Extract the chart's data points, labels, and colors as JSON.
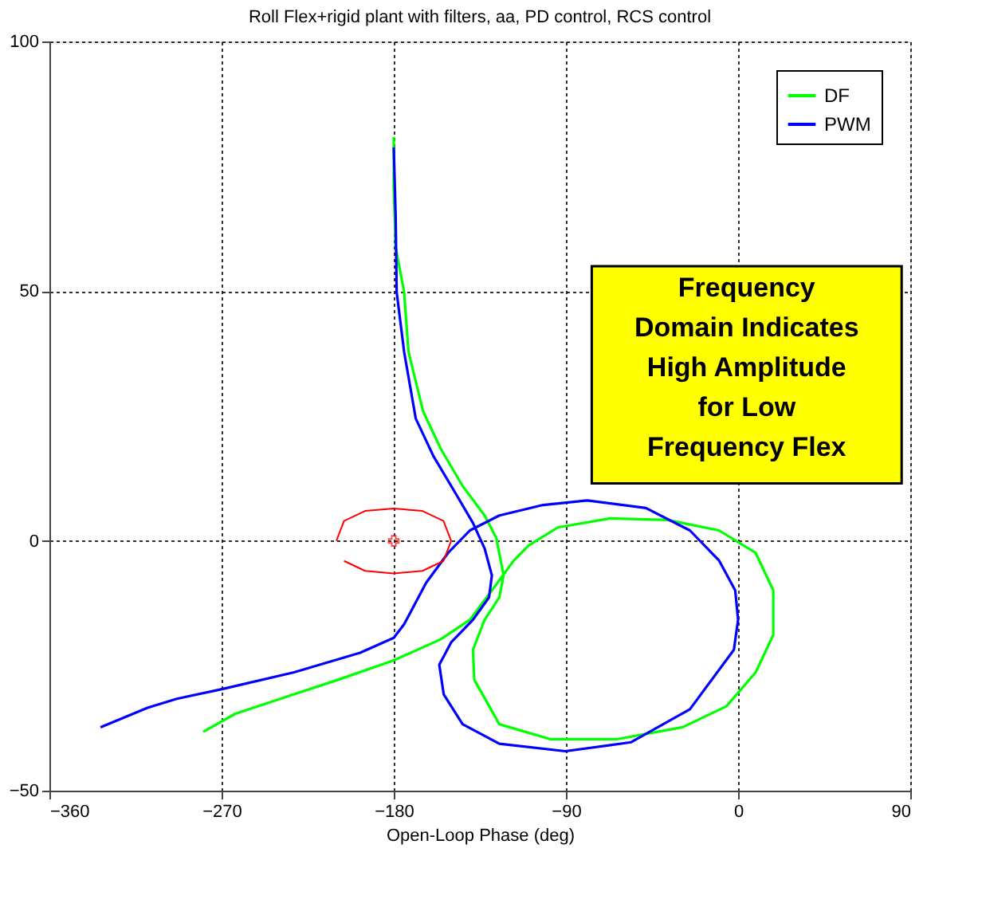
{
  "chart_data": {
    "type": "line",
    "title": "Roll Flex+rigid plant with filters, aa, PD control, RCS control",
    "xlabel": "Open-Loop Phase (deg)",
    "xlim": [
      -360,
      90
    ],
    "xticks": [
      -360,
      -270,
      -180,
      -90,
      0,
      90
    ],
    "ylim": [
      -50,
      100
    ],
    "yticks": [
      -50,
      0,
      50,
      100
    ],
    "grid": true,
    "legend": "top right",
    "marker": "none",
    "annotations": [
      "Frequency\nDomain Indicates\nHigh Amplitude\nfor Low\nFrequency Flex"
    ],
    "series": [
      {
        "name": "DF",
        "color": "#00ff00",
        "x": [
          -180,
          -180,
          -179,
          -174.6,
          -172.3,
          -164.7,
          -155.5,
          -144,
          -132.5,
          -126.4,
          -122.6,
          -124.8,
          -132.5,
          -138.6,
          -137.9,
          -124.8,
          -98,
          -63.5,
          -29,
          -6.1,
          9.2,
          18.4,
          18.4,
          9.2,
          -10,
          -36.8,
          -67.4,
          -94.2,
          -109.5,
          -117.2,
          -128.7,
          -140.2,
          -155.5,
          -180,
          -209.1,
          -232.1,
          -262.8,
          -279.6
        ],
        "values": [
          80.9,
          70.7,
          58.8,
          49.9,
          37.9,
          26,
          18.5,
          11,
          5.1,
          0.6,
          -6.9,
          -11.3,
          -15.8,
          -21.8,
          -27.8,
          -36.7,
          -39.7,
          -39.7,
          -37.3,
          -33.1,
          -26.3,
          -18.8,
          -9.9,
          -2.4,
          2.1,
          4.2,
          4.5,
          2.7,
          -0.9,
          -3.9,
          -9.9,
          -15.8,
          -19.7,
          -23.9,
          -27.8,
          -30.7,
          -34.6,
          -38.2
        ]
      },
      {
        "name": "PWM",
        "color": "#0000ff",
        "x": [
          -180,
          -179,
          -178.5,
          -174.6,
          -168.5,
          -159.3,
          -147.8,
          -138.6,
          -132.5,
          -128.7,
          -130.2,
          -138.6,
          -150,
          -156.2,
          -153.9,
          -144,
          -124.8,
          -90.3,
          -55.9,
          -25.2,
          -2.2,
          0,
          -1.5,
          -10,
          -25.2,
          -48.2,
          -78.9,
          -101.9,
          -124.8,
          -140.2,
          -151.6,
          -163.1,
          -174.6,
          -180,
          -197.6,
          -232.1,
          -268.9,
          -293.4,
          -308.7,
          -333.3
        ],
        "values": [
          78.8,
          64.8,
          49.9,
          37.9,
          24.5,
          17,
          9.6,
          3.6,
          -1.5,
          -6.9,
          -11.3,
          -15.8,
          -20.3,
          -24.8,
          -30.7,
          -36.7,
          -40.6,
          -42.1,
          -40.3,
          -33.7,
          -21.8,
          -15.8,
          -9.9,
          -3.9,
          2.1,
          6.6,
          8.1,
          7.2,
          5.1,
          2.1,
          -2.4,
          -8.4,
          -16.7,
          -19.4,
          -22.4,
          -26.3,
          -29.6,
          -31.6,
          -33.4,
          -37.3
        ]
      },
      {
        "color": "#ff0000",
        "x": [
          -210,
          -206,
          -195,
          -180,
          -165,
          -154,
          -150,
          -154,
          -165,
          -180,
          -195,
          -206
        ],
        "values": [
          0,
          4,
          6,
          6.5,
          6,
          4,
          0,
          -4,
          -6,
          -6.5,
          -6,
          -4
        ]
      },
      {
        "type": "scatter",
        "marker": "cross",
        "color": "#ff0000",
        "x": [
          -180
        ],
        "values": [
          0
        ]
      }
    ]
  }
}
